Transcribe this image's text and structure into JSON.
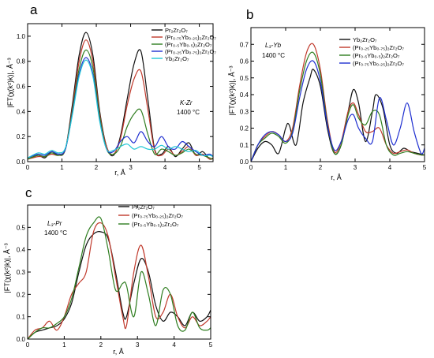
{
  "figure": {
    "panel_letters": [
      "a",
      "b",
      "c"
    ]
  },
  "colors": {
    "black": "#111111",
    "red": "#c0392b",
    "green": "#2e7d1f",
    "blue": "#1f2fd0",
    "cyan": "#22c7d6"
  },
  "chart_data": [
    {
      "id": "a",
      "type": "line",
      "panel_letter": "a",
      "xlabel": "r, Å",
      "ylabel": "|FT(χ(k²)k)|, Å⁻³",
      "xlim": [
        0,
        5.4
      ],
      "ylim": [
        0,
        1.1
      ],
      "xticks": [
        0,
        1,
        2,
        3,
        4,
        5
      ],
      "yticks": [
        0.0,
        0.2,
        0.4,
        0.6,
        0.8,
        1.0
      ],
      "annotation": [
        "K-Zr",
        "1400 °C"
      ],
      "series": [
        {
          "name": "Pr₂Zr₂O₇",
          "color": "#111111",
          "x": [
            0,
            0.3,
            0.5,
            0.7,
            0.9,
            1.1,
            1.3,
            1.5,
            1.7,
            1.9,
            2.1,
            2.3,
            2.5,
            2.7,
            2.9,
            3.1,
            3.3,
            3.5,
            3.7,
            3.9,
            4.1,
            4.3,
            4.5,
            4.7,
            4.9,
            5.1,
            5.3,
            5.4
          ],
          "y": [
            0.02,
            0.05,
            0.03,
            0.08,
            0.05,
            0.1,
            0.45,
            0.85,
            1.03,
            0.85,
            0.4,
            0.12,
            0.05,
            0.2,
            0.5,
            0.78,
            0.88,
            0.5,
            0.1,
            0.06,
            0.12,
            0.04,
            0.1,
            0.15,
            0.05,
            0.08,
            0.02,
            0.03
          ]
        },
        {
          "name": "(Pr₀.₇₅Yb₀.₂₅)₂Zr₂O₇",
          "color": "#c0392b",
          "x": [
            0,
            0.3,
            0.5,
            0.7,
            0.9,
            1.1,
            1.3,
            1.5,
            1.7,
            1.9,
            2.1,
            2.3,
            2.5,
            2.7,
            2.9,
            3.1,
            3.3,
            3.5,
            3.7,
            3.9,
            4.1,
            4.3,
            4.5,
            4.7,
            4.9,
            5.1,
            5.3,
            5.4
          ],
          "y": [
            0.02,
            0.04,
            0.04,
            0.06,
            0.05,
            0.1,
            0.42,
            0.8,
            0.97,
            0.8,
            0.38,
            0.12,
            0.06,
            0.18,
            0.45,
            0.66,
            0.72,
            0.42,
            0.09,
            0.05,
            0.1,
            0.05,
            0.08,
            0.12,
            0.05,
            0.06,
            0.02,
            0.03
          ]
        },
        {
          "name": "(Pr₀.₅Yb₀.₅)₂Zr₂O₇",
          "color": "#2e7d1f",
          "x": [
            0,
            0.3,
            0.5,
            0.7,
            0.9,
            1.1,
            1.3,
            1.5,
            1.7,
            1.9,
            2.1,
            2.3,
            2.5,
            2.7,
            2.9,
            3.1,
            3.3,
            3.5,
            3.7,
            3.9,
            4.1,
            4.3,
            4.5,
            4.7,
            4.9,
            5.1,
            5.3,
            5.4
          ],
          "y": [
            0.02,
            0.05,
            0.04,
            0.07,
            0.05,
            0.1,
            0.4,
            0.74,
            0.89,
            0.75,
            0.36,
            0.1,
            0.06,
            0.12,
            0.28,
            0.38,
            0.41,
            0.22,
            0.06,
            0.1,
            0.08,
            0.05,
            0.07,
            0.1,
            0.06,
            0.05,
            0.03,
            0.02
          ]
        },
        {
          "name": "(Pr₀.₂₅Yb₀.₇₅)₂Zr₂O₇",
          "color": "#1f2fd0",
          "x": [
            0,
            0.3,
            0.5,
            0.7,
            0.9,
            1.1,
            1.3,
            1.5,
            1.7,
            1.9,
            2.1,
            2.3,
            2.5,
            2.7,
            2.9,
            3.1,
            3.3,
            3.5,
            3.7,
            3.9,
            4.1,
            4.3,
            4.5,
            4.7,
            4.9,
            5.1,
            5.3,
            5.4
          ],
          "y": [
            0.03,
            0.06,
            0.05,
            0.08,
            0.06,
            0.1,
            0.38,
            0.7,
            0.83,
            0.7,
            0.33,
            0.1,
            0.08,
            0.16,
            0.2,
            0.15,
            0.24,
            0.16,
            0.12,
            0.2,
            0.12,
            0.1,
            0.16,
            0.12,
            0.08,
            0.05,
            0.06,
            0.04
          ]
        },
        {
          "name": "Yb₂Zr₂O₇",
          "color": "#22c7d6",
          "x": [
            0,
            0.3,
            0.5,
            0.7,
            0.9,
            1.1,
            1.3,
            1.5,
            1.7,
            1.9,
            2.1,
            2.3,
            2.5,
            2.7,
            2.9,
            3.1,
            3.3,
            3.5,
            3.7,
            3.9,
            4.1,
            4.3,
            4.5,
            4.7,
            4.9,
            5.1,
            5.3,
            5.4
          ],
          "y": [
            0.03,
            0.07,
            0.06,
            0.09,
            0.07,
            0.11,
            0.37,
            0.68,
            0.81,
            0.68,
            0.32,
            0.1,
            0.09,
            0.12,
            0.14,
            0.1,
            0.12,
            0.1,
            0.1,
            0.13,
            0.1,
            0.12,
            0.1,
            0.08,
            0.09,
            0.05,
            0.05,
            0.04
          ]
        }
      ]
    },
    {
      "id": "b",
      "type": "line",
      "panel_letter": "b",
      "xlabel": "r, Å",
      "ylabel": "|FT(χ(k²)k)|, Å⁻³",
      "xlim": [
        0,
        5
      ],
      "ylim": [
        0,
        0.8
      ],
      "xticks": [
        0,
        1,
        2,
        3,
        4,
        5
      ],
      "yticks": [
        0.0,
        0.1,
        0.2,
        0.3,
        0.4,
        0.5,
        0.6,
        0.7
      ],
      "annotation": [
        "L₃-Yb",
        "1400 °C"
      ],
      "series": [
        {
          "name": "Yb₂Zr₂O₇",
          "color": "#111111",
          "x": [
            0,
            0.2,
            0.4,
            0.6,
            0.8,
            1.0,
            1.1,
            1.3,
            1.5,
            1.7,
            1.8,
            2.0,
            2.2,
            2.4,
            2.6,
            2.8,
            2.95,
            3.1,
            3.3,
            3.5,
            3.6,
            3.8,
            4.0,
            4.2,
            4.4,
            4.6,
            4.8,
            5.0
          ],
          "y": [
            0.0,
            0.08,
            0.12,
            0.1,
            0.05,
            0.2,
            0.22,
            0.1,
            0.35,
            0.5,
            0.55,
            0.45,
            0.2,
            0.05,
            0.1,
            0.3,
            0.43,
            0.35,
            0.12,
            0.3,
            0.4,
            0.32,
            0.1,
            0.05,
            0.08,
            0.06,
            0.05,
            0.04
          ]
        },
        {
          "name": "(Pr₀.₂₅Yb₀.₇₅)₂Zr₂O₇",
          "color": "#c0392b",
          "x": [
            0,
            0.2,
            0.4,
            0.6,
            0.8,
            1.0,
            1.2,
            1.4,
            1.6,
            1.8,
            2.0,
            2.2,
            2.4,
            2.6,
            2.8,
            2.95,
            3.1,
            3.3,
            3.5,
            3.7,
            3.9,
            4.1,
            4.3,
            4.5,
            4.7,
            4.9,
            5.0
          ],
          "y": [
            0.0,
            0.1,
            0.15,
            0.18,
            0.16,
            0.12,
            0.2,
            0.45,
            0.65,
            0.7,
            0.55,
            0.25,
            0.06,
            0.12,
            0.3,
            0.35,
            0.28,
            0.18,
            0.18,
            0.2,
            0.1,
            0.05,
            0.06,
            0.07,
            0.05,
            0.04,
            0.04
          ]
        },
        {
          "name": "(Pr₀.₅Yb₀.₅)₂Zr₂O₇",
          "color": "#2e7d1f",
          "x": [
            0,
            0.2,
            0.4,
            0.6,
            0.8,
            1.0,
            1.2,
            1.4,
            1.6,
            1.8,
            2.0,
            2.2,
            2.4,
            2.6,
            2.8,
            2.95,
            3.1,
            3.3,
            3.5,
            3.7,
            3.9,
            4.1,
            4.3,
            4.5,
            4.7,
            4.9,
            5.0
          ],
          "y": [
            0.0,
            0.1,
            0.14,
            0.17,
            0.15,
            0.11,
            0.18,
            0.42,
            0.6,
            0.65,
            0.52,
            0.23,
            0.05,
            0.1,
            0.28,
            0.34,
            0.26,
            0.22,
            0.3,
            0.28,
            0.1,
            0.04,
            0.05,
            0.06,
            0.05,
            0.04,
            0.04
          ]
        },
        {
          "name": "(Pr₀.₇₅Yb₀.₂₅)₂Zr₂O₇",
          "color": "#1f2fd0",
          "x": [
            0,
            0.2,
            0.4,
            0.6,
            0.8,
            1.0,
            1.2,
            1.4,
            1.6,
            1.8,
            2.0,
            2.2,
            2.4,
            2.6,
            2.8,
            2.95,
            3.1,
            3.3,
            3.5,
            3.7,
            3.9,
            4.1,
            4.3,
            4.5,
            4.7,
            4.9,
            5.0
          ],
          "y": [
            0.0,
            0.1,
            0.16,
            0.18,
            0.16,
            0.12,
            0.17,
            0.38,
            0.55,
            0.6,
            0.48,
            0.22,
            0.07,
            0.12,
            0.25,
            0.28,
            0.2,
            0.14,
            0.12,
            0.38,
            0.25,
            0.1,
            0.2,
            0.35,
            0.18,
            0.05,
            0.08
          ]
        }
      ]
    },
    {
      "id": "c",
      "type": "line",
      "panel_letter": "c",
      "xlabel": "r, Å",
      "ylabel": "|FT(χ(k²)k)|, Å⁻³",
      "xlim": [
        0,
        5
      ],
      "ylim": [
        0,
        0.6
      ],
      "xticks": [
        0,
        1,
        2,
        3,
        4,
        5
      ],
      "yticks": [
        0.0,
        0.1,
        0.2,
        0.3,
        0.4,
        0.5
      ],
      "annotation": [
        "L₃-Pr",
        "1400 °C"
      ],
      "series": [
        {
          "name": "Pr₂Zr₂O₇",
          "color": "#111111",
          "x": [
            0,
            0.2,
            0.4,
            0.6,
            0.8,
            1.0,
            1.2,
            1.4,
            1.6,
            1.8,
            2.0,
            2.2,
            2.4,
            2.6,
            2.7,
            2.9,
            3.1,
            3.3,
            3.5,
            3.7,
            3.9,
            4.1,
            4.3,
            4.5,
            4.7,
            4.9,
            5.0
          ],
          "y": [
            0.0,
            0.03,
            0.04,
            0.05,
            0.06,
            0.09,
            0.16,
            0.3,
            0.42,
            0.47,
            0.48,
            0.45,
            0.3,
            0.12,
            0.1,
            0.25,
            0.36,
            0.3,
            0.15,
            0.08,
            0.12,
            0.1,
            0.06,
            0.12,
            0.08,
            0.1,
            0.13
          ]
        },
        {
          "name": "(Pr₀.₇₅Yb₀.₂₅)₂Zr₂O₇",
          "color": "#c0392b",
          "x": [
            0,
            0.2,
            0.4,
            0.6,
            0.8,
            1.0,
            1.2,
            1.4,
            1.6,
            1.8,
            2.0,
            2.2,
            2.4,
            2.6,
            2.7,
            2.9,
            3.1,
            3.3,
            3.5,
            3.7,
            3.9,
            4.1,
            4.3,
            4.5,
            4.7,
            4.9,
            5.0
          ],
          "y": [
            0.0,
            0.04,
            0.05,
            0.08,
            0.04,
            0.1,
            0.2,
            0.25,
            0.3,
            0.48,
            0.52,
            0.46,
            0.28,
            0.1,
            0.06,
            0.3,
            0.42,
            0.28,
            0.1,
            0.12,
            0.2,
            0.1,
            0.05,
            0.1,
            0.06,
            0.08,
            0.1
          ]
        },
        {
          "name": "(Pr₀.₅Yb₀.₅)₂Zr₂O₇",
          "color": "#2e7d1f",
          "x": [
            0,
            0.2,
            0.4,
            0.6,
            0.8,
            1.0,
            1.2,
            1.4,
            1.6,
            1.8,
            2.0,
            2.2,
            2.4,
            2.6,
            2.7,
            2.9,
            3.1,
            3.3,
            3.5,
            3.7,
            3.9,
            4.1,
            4.3,
            4.5,
            4.7,
            4.9,
            5.0
          ],
          "y": [
            0.0,
            0.03,
            0.05,
            0.05,
            0.07,
            0.1,
            0.18,
            0.32,
            0.46,
            0.52,
            0.54,
            0.4,
            0.22,
            0.25,
            0.24,
            0.1,
            0.3,
            0.2,
            0.06,
            0.22,
            0.2,
            0.06,
            0.04,
            0.12,
            0.05,
            0.04,
            0.05
          ]
        }
      ]
    }
  ]
}
